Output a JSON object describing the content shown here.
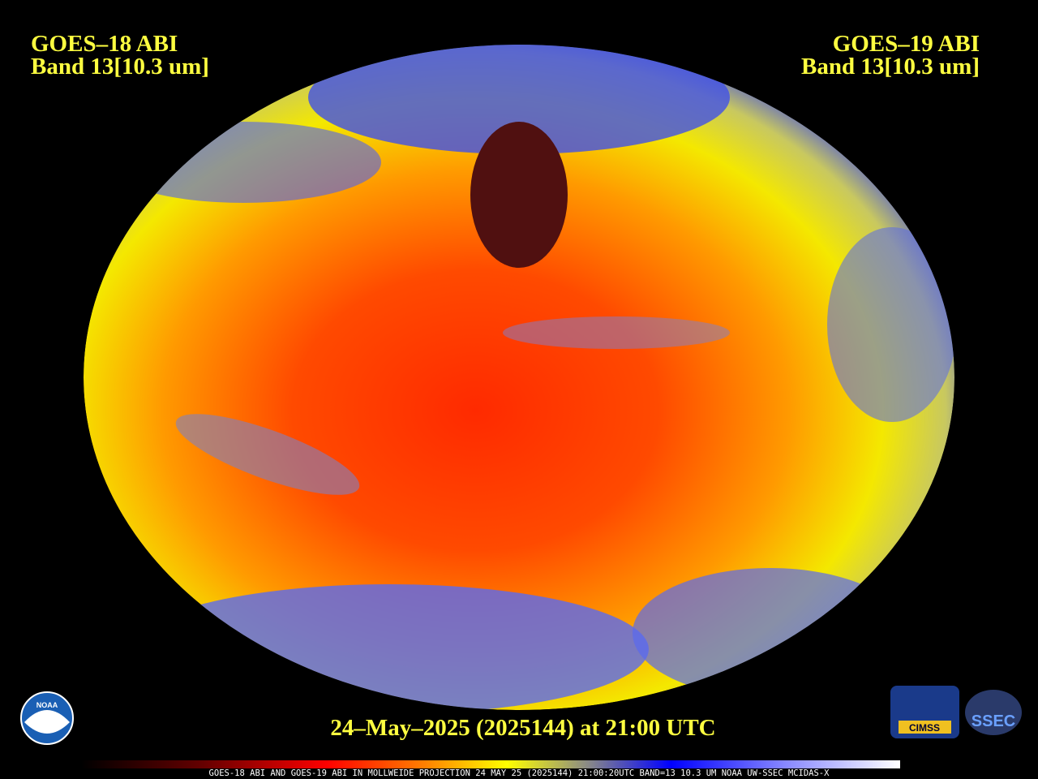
{
  "header": {
    "left": {
      "title": "GOES–18 ABI",
      "band": "Band 13[10.3 um]"
    },
    "right": {
      "title": "GOES–19 ABI",
      "band": "Band 13[10.3 um]"
    }
  },
  "footer": {
    "date": "24–May–2025 (2025144) at 21:00 UTC",
    "caption": "GOES-18 ABI AND GOES-19 ABI IN MOLLWEIDE PROJECTION 24 MAY 25 (2025144) 21:00:20UTC BAND=13 10.3 UM NOAA UW-SSEC MCIDAS-X"
  },
  "logos": {
    "noaa": "NOAA",
    "cimss": "CIMSS",
    "ssec": "SSEC"
  }
}
